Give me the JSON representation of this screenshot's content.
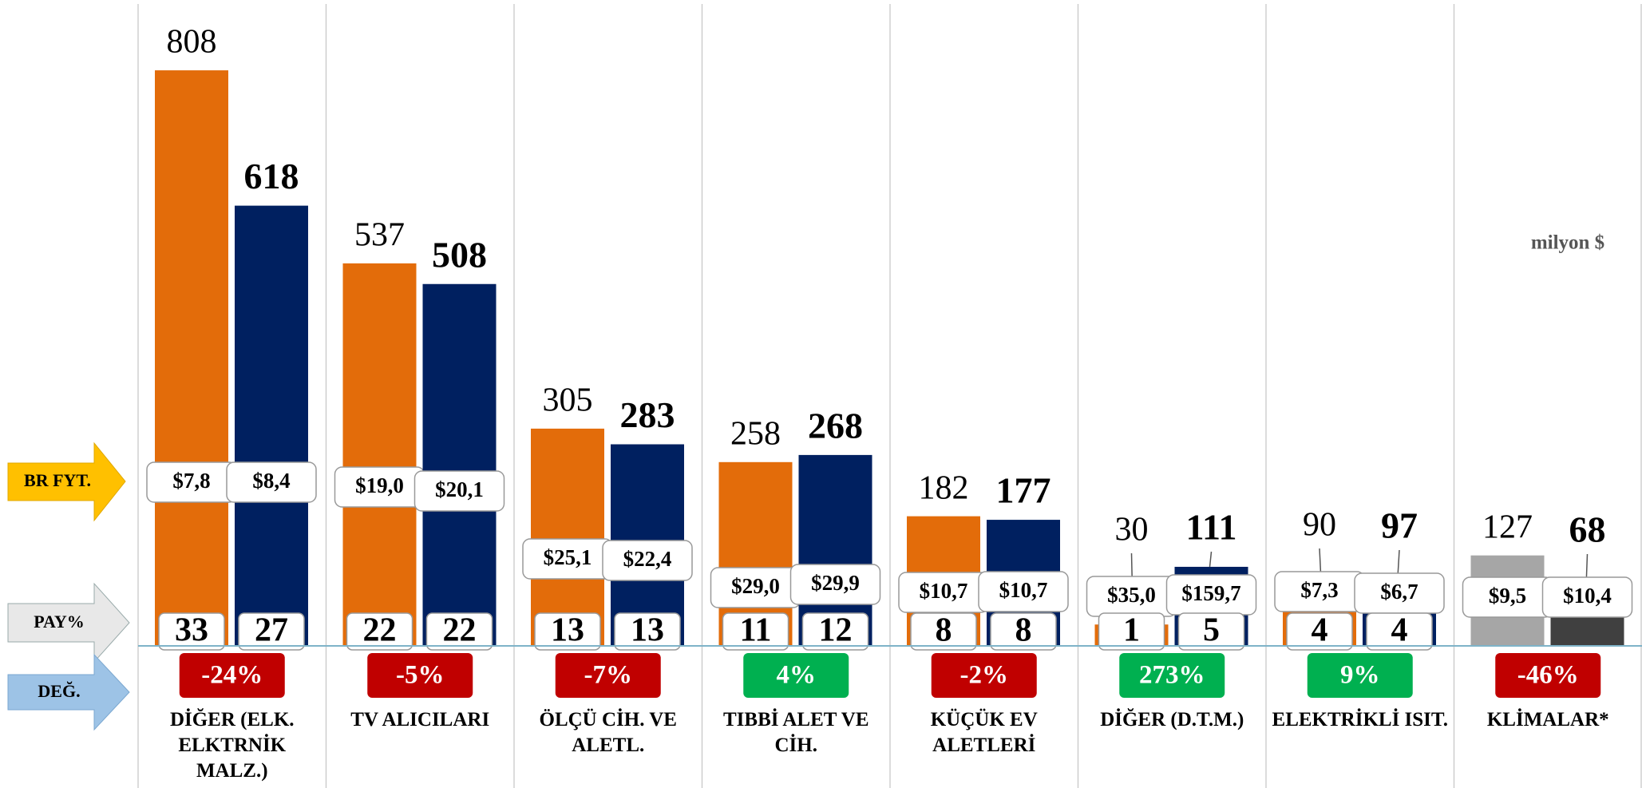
{
  "chart_data": {
    "type": "bar",
    "unit_note": "milyon $",
    "row_labels": {
      "price": "BR FYT.",
      "share": "PAY%",
      "change": "DEĞ."
    },
    "categories": [
      "DİĞER (ELK. ELKTRNİK MALZ.)",
      "TV ALICILARI",
      "ÖLÇÜ CİH. VE ALETL.",
      "TIBBİ ALET VE CİH.",
      "KÜÇÜK EV ALETLERİ",
      "DİĞER (D.T.M.)",
      "ELEKTRİKLİ ISIT.",
      "KLİMALAR*"
    ],
    "ylim": [
      0,
      900
    ],
    "series": [
      {
        "values": [
          808,
          537,
          305,
          258,
          182,
          30,
          90,
          127
        ],
        "colors": [
          "#e36c0a",
          "#e36c0a",
          "#e36c0a",
          "#e36c0a",
          "#e36c0a",
          "#e36c0a",
          "#e36c0a",
          "#a6a6a6"
        ],
        "price_labels": [
          "$7,8",
          "$19,0",
          "$25,1",
          "$29,0",
          "$10,7",
          "$35,0",
          "$7,3",
          "$9,5"
        ],
        "shares": [
          33,
          22,
          13,
          11,
          8,
          1,
          4,
          null
        ]
      },
      {
        "values": [
          618,
          508,
          283,
          268,
          177,
          111,
          97,
          68
        ],
        "colors": [
          "#002060",
          "#002060",
          "#002060",
          "#002060",
          "#002060",
          "#002060",
          "#002060",
          "#404040"
        ],
        "price_labels": [
          "$8,4",
          "$20,1",
          "$22,4",
          "$29,9",
          "$10,7",
          "$159,7",
          "$6,7",
          "$10,4"
        ],
        "shares": [
          27,
          22,
          13,
          12,
          8,
          5,
          4,
          null
        ]
      }
    ],
    "changes": [
      -24,
      -5,
      -7,
      4,
      -2,
      273,
      9,
      -46
    ],
    "change_labels": [
      "-24%",
      "-5%",
      "-7%",
      "4%",
      "-2%",
      "273%",
      "9%",
      "-46%"
    ]
  }
}
